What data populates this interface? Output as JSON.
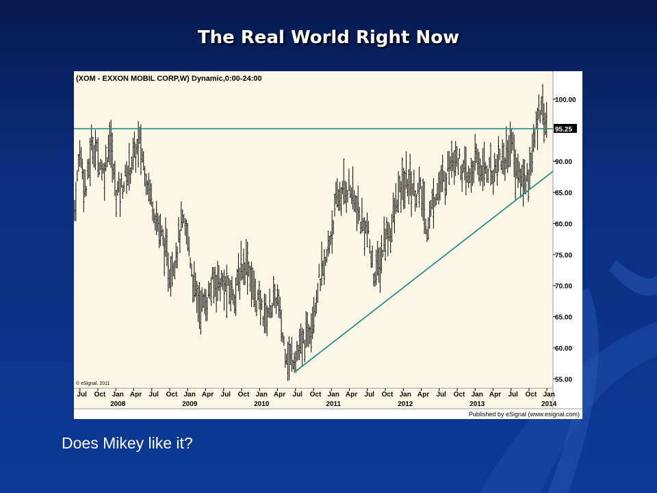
{
  "slide": {
    "title": "The Real World Right Now",
    "caption": "Does Mikey like it?"
  },
  "colors": {
    "background": "#0b2d7c",
    "plot_background": "#fbf7e7",
    "price_bars": "#000000",
    "trend_lines": "#2e8a8a",
    "price_flag": "#000000"
  },
  "chart_data": {
    "type": "ohlc-bar",
    "title": "(XOM - EXXON MOBIL CORP,W) Dynamic,0:00-24:00",
    "copyright": "© eSignal, 2011",
    "publisher": "Published by eSignal (www.esignal.com)",
    "x_tick_labels": [
      "Jul",
      "Oct",
      "Jan",
      "Apr",
      "Jul",
      "Oct",
      "Jan",
      "Apr",
      "Jul",
      "Oct",
      "Jan",
      "Apr",
      "Jul",
      "Oct",
      "Jan",
      "Apr",
      "Jul",
      "Oct",
      "Jan",
      "Apr",
      "Jul",
      "Oct",
      "Jan",
      "Apr",
      "Jul",
      "Oct",
      "Jan"
    ],
    "year_labels": [
      {
        "label": "2008",
        "after_index": 2
      },
      {
        "label": "2009",
        "after_index": 6
      },
      {
        "label": "2010",
        "after_index": 10
      },
      {
        "label": "2011",
        "after_index": 14
      },
      {
        "label": "2012",
        "after_index": 18
      },
      {
        "label": "2013",
        "after_index": 22
      },
      {
        "label": "2014",
        "after_index": 26
      }
    ],
    "y_ticks": [
      "100.00",
      "95.25",
      "90.00",
      "85.00",
      "80.00",
      "75.00",
      "70.00",
      "65.00",
      "60.00",
      "55.00"
    ],
    "ylim": [
      53.5,
      104.5
    ],
    "x_range": [
      "2007-06",
      "2014-02"
    ],
    "last_price": 95.25,
    "price_series": [
      {
        "date": "2007-06",
        "value": 81
      },
      {
        "date": "2007-07",
        "value": 92
      },
      {
        "date": "2007-08",
        "value": 85
      },
      {
        "date": "2007-09",
        "value": 93
      },
      {
        "date": "2007-10",
        "value": 91
      },
      {
        "date": "2007-11",
        "value": 88
      },
      {
        "date": "2007-12",
        "value": 94
      },
      {
        "date": "2008-01",
        "value": 85
      },
      {
        "date": "2008-02",
        "value": 86
      },
      {
        "date": "2008-03",
        "value": 88
      },
      {
        "date": "2008-04",
        "value": 91
      },
      {
        "date": "2008-05",
        "value": 93
      },
      {
        "date": "2008-06",
        "value": 88
      },
      {
        "date": "2008-07",
        "value": 84
      },
      {
        "date": "2008-08",
        "value": 80
      },
      {
        "date": "2008-09",
        "value": 77
      },
      {
        "date": "2008-10",
        "value": 72
      },
      {
        "date": "2008-11",
        "value": 75
      },
      {
        "date": "2008-12",
        "value": 80
      },
      {
        "date": "2009-01",
        "value": 78
      },
      {
        "date": "2009-02",
        "value": 70
      },
      {
        "date": "2009-03",
        "value": 67
      },
      {
        "date": "2009-04",
        "value": 67
      },
      {
        "date": "2009-05",
        "value": 70
      },
      {
        "date": "2009-06",
        "value": 71
      },
      {
        "date": "2009-07",
        "value": 70
      },
      {
        "date": "2009-08",
        "value": 69
      },
      {
        "date": "2009-09",
        "value": 69
      },
      {
        "date": "2009-10",
        "value": 73
      },
      {
        "date": "2009-11",
        "value": 74
      },
      {
        "date": "2009-12",
        "value": 69
      },
      {
        "date": "2010-01",
        "value": 67
      },
      {
        "date": "2010-02",
        "value": 65
      },
      {
        "date": "2010-03",
        "value": 67
      },
      {
        "date": "2010-04",
        "value": 68
      },
      {
        "date": "2010-05",
        "value": 61
      },
      {
        "date": "2010-06",
        "value": 58
      },
      {
        "date": "2010-07",
        "value": 59
      },
      {
        "date": "2010-08",
        "value": 60
      },
      {
        "date": "2010-09",
        "value": 62
      },
      {
        "date": "2010-10",
        "value": 66
      },
      {
        "date": "2010-11",
        "value": 71
      },
      {
        "date": "2010-12",
        "value": 73
      },
      {
        "date": "2011-01",
        "value": 79
      },
      {
        "date": "2011-02",
        "value": 84
      },
      {
        "date": "2011-03",
        "value": 85
      },
      {
        "date": "2011-04",
        "value": 86
      },
      {
        "date": "2011-05",
        "value": 83
      },
      {
        "date": "2011-06",
        "value": 80
      },
      {
        "date": "2011-07",
        "value": 79
      },
      {
        "date": "2011-08",
        "value": 72
      },
      {
        "date": "2011-09",
        "value": 73
      },
      {
        "date": "2011-10",
        "value": 78
      },
      {
        "date": "2011-11",
        "value": 79
      },
      {
        "date": "2011-12",
        "value": 84
      },
      {
        "date": "2012-01",
        "value": 86
      },
      {
        "date": "2012-02",
        "value": 87
      },
      {
        "date": "2012-03",
        "value": 85
      },
      {
        "date": "2012-04",
        "value": 85
      },
      {
        "date": "2012-05",
        "value": 79
      },
      {
        "date": "2012-06",
        "value": 84
      },
      {
        "date": "2012-07",
        "value": 86
      },
      {
        "date": "2012-08",
        "value": 87
      },
      {
        "date": "2012-09",
        "value": 91
      },
      {
        "date": "2012-10",
        "value": 91
      },
      {
        "date": "2012-11",
        "value": 88
      },
      {
        "date": "2012-12",
        "value": 87
      },
      {
        "date": "2013-01",
        "value": 90
      },
      {
        "date": "2013-02",
        "value": 89
      },
      {
        "date": "2013-03",
        "value": 89
      },
      {
        "date": "2013-04",
        "value": 88
      },
      {
        "date": "2013-05",
        "value": 91
      },
      {
        "date": "2013-06",
        "value": 90
      },
      {
        "date": "2013-07",
        "value": 94
      },
      {
        "date": "2013-08",
        "value": 88
      },
      {
        "date": "2013-09",
        "value": 87
      },
      {
        "date": "2013-10",
        "value": 88
      },
      {
        "date": "2013-11",
        "value": 94
      },
      {
        "date": "2013-12",
        "value": 100
      },
      {
        "date": "2014-01",
        "value": 95.25
      }
    ],
    "lines": [
      {
        "name": "resistance",
        "kind": "horizontal",
        "value": 95.25,
        "from": "2007-06",
        "to": "2014-02"
      },
      {
        "name": "trendline",
        "kind": "segment",
        "from": {
          "date": "2010-07",
          "value": 56.2
        },
        "to": {
          "date": "2014-02",
          "value": 88.4
        }
      }
    ],
    "grid": false
  }
}
